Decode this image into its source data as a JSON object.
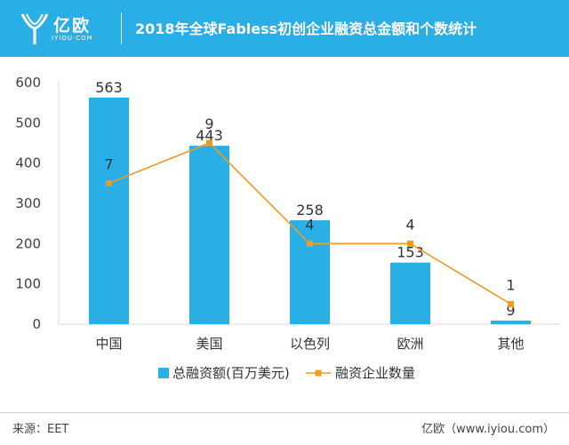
{
  "header": {
    "logo_name": "亿欧",
    "logo_url": "IYIOU·COM",
    "title": "2018年全球Fabless初创企业融资总金额和个数统计"
  },
  "footer": {
    "source": "来源：EET",
    "site": "亿欧（www.iyiou.com）"
  },
  "colors": {
    "header": "#2aaee6",
    "bar": "#2aaee6",
    "line": "#f29a1d"
  },
  "chart_data": {
    "type": "bar",
    "title": "2018年全球Fabless初创企业融资总金额和个数统计",
    "categories": [
      "中国",
      "美国",
      "以色列",
      "欧洲",
      "其他"
    ],
    "series": [
      {
        "name": "总融资额(百万美元)",
        "type": "bar",
        "values": [
          563,
          443,
          258,
          153,
          9
        ]
      },
      {
        "name": "融资企业数量",
        "type": "line",
        "values": [
          7,
          9,
          4,
          4,
          1
        ]
      }
    ],
    "y_ticks": [
      "0",
      "100",
      "200",
      "300",
      "400",
      "500",
      "600"
    ],
    "ylim": [
      0,
      600
    ],
    "line_ylim": [
      0,
      12
    ],
    "legend": "bottom",
    "grid": false
  }
}
